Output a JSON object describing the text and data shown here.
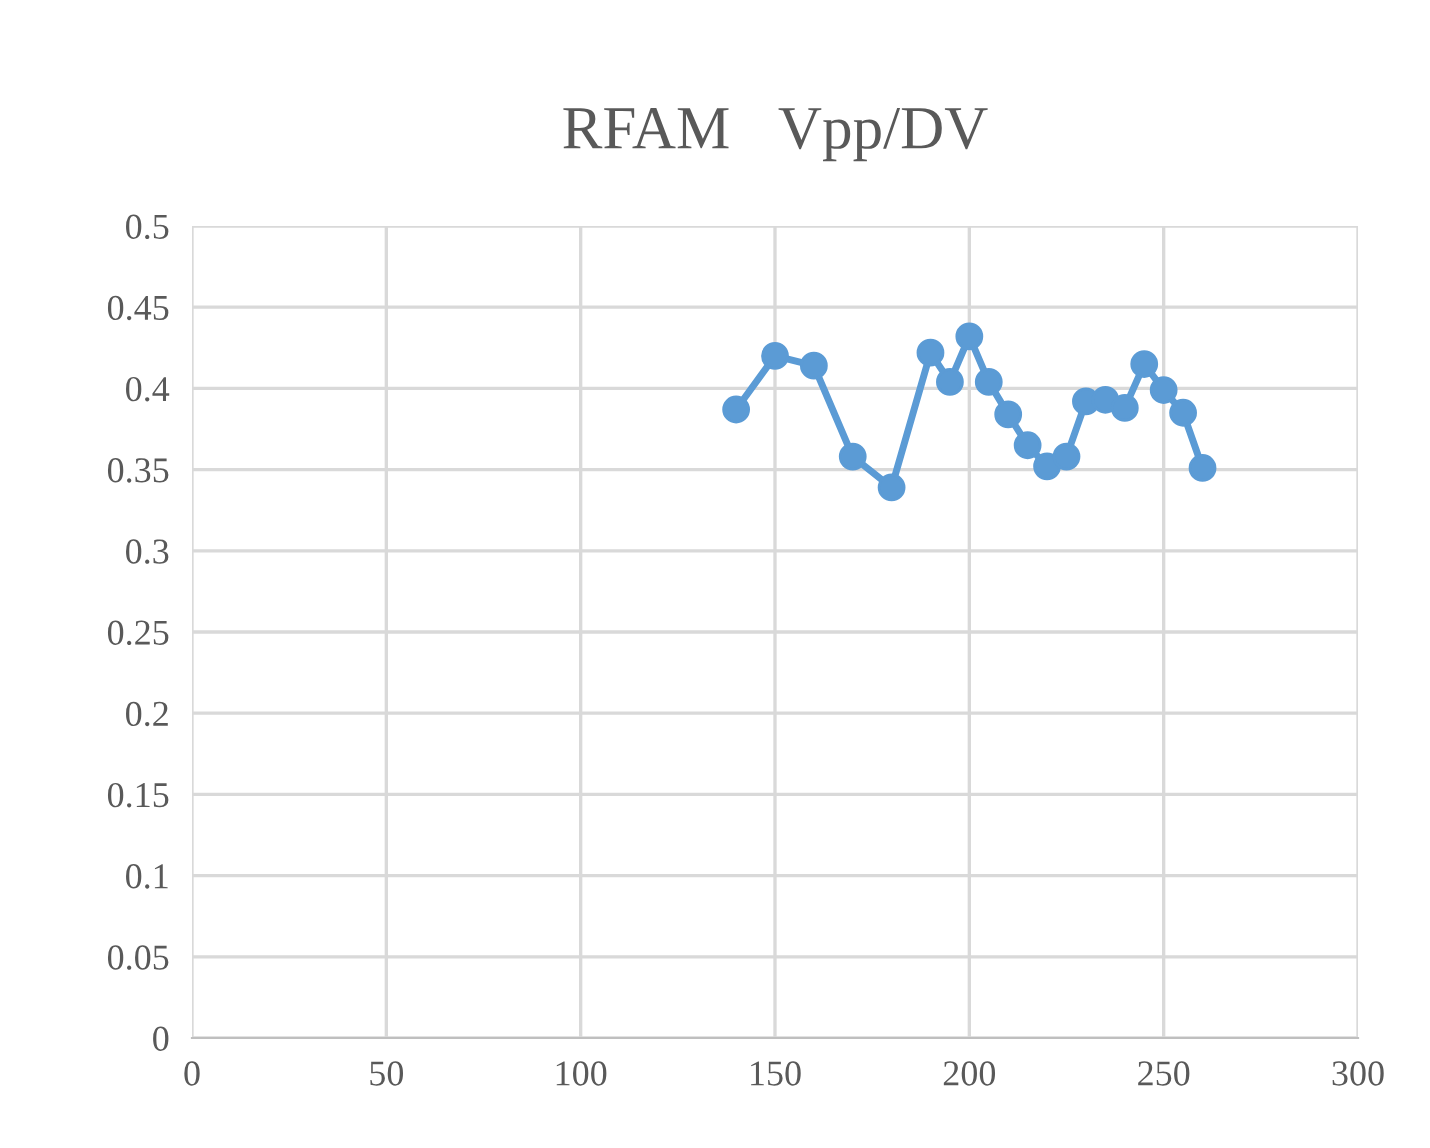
{
  "chart_data": {
    "type": "line",
    "title": "RFAM　Vpp/DV",
    "x": [
      140,
      150,
      160,
      170,
      180,
      190,
      195,
      200,
      205,
      210,
      215,
      220,
      225,
      230,
      235,
      240,
      245,
      250,
      255,
      260
    ],
    "series": [
      {
        "color": "#5b9bd5",
        "values": [
          0.387,
          0.42,
          0.414,
          0.358,
          0.339,
          0.422,
          0.404,
          0.432,
          0.404,
          0.384,
          0.365,
          0.352,
          0.358,
          0.392,
          0.393,
          0.388,
          0.415,
          0.399,
          0.385,
          0.351
        ]
      }
    ],
    "xlim": [
      0,
      300
    ],
    "xticks": [
      0,
      50,
      100,
      150,
      200,
      250,
      300
    ],
    "ylim": [
      0,
      0.5
    ],
    "yticks": [
      0,
      0.05,
      0.1,
      0.15,
      0.2,
      0.25,
      0.3,
      0.35,
      0.4,
      0.45,
      0.5
    ],
    "grid": true,
    "marker": "circle",
    "line_style": "solid"
  }
}
